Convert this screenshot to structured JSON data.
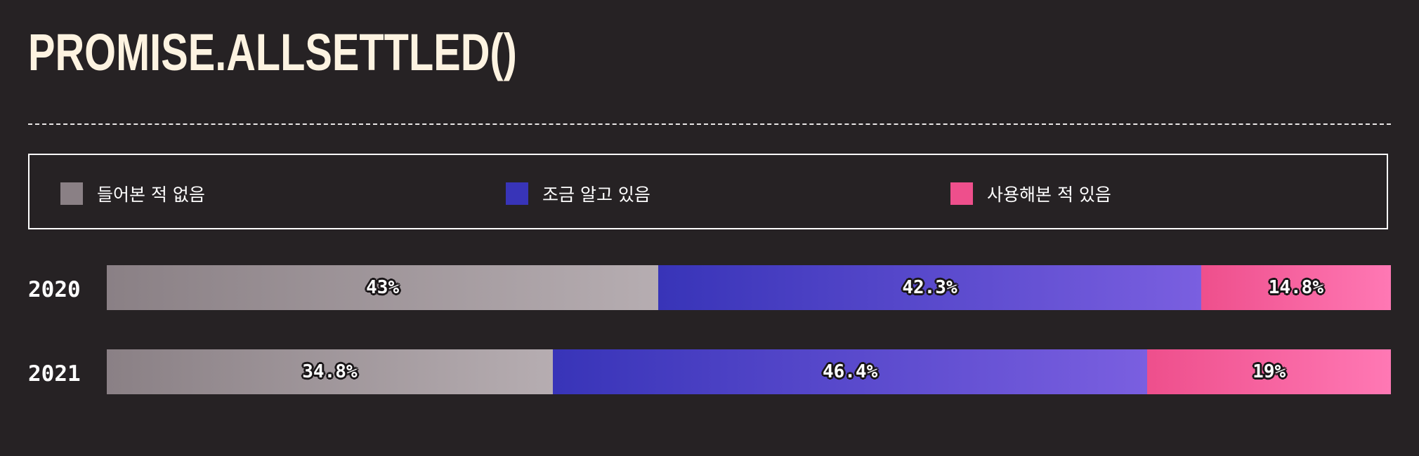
{
  "title": "PROMISE.ALLSETTLED()",
  "colors": {
    "background": "#262224",
    "title": "#fdf3e1",
    "not_heard": "#8a8085",
    "know_little": "#3834b8",
    "used": "#ee4f8c"
  },
  "legend": [
    {
      "label": "들어본 적 없음",
      "color": "#8a8085"
    },
    {
      "label": "조금 알고 있음",
      "color": "#3834b8"
    },
    {
      "label": "사용해본 적 있음",
      "color": "#ee4f8c"
    }
  ],
  "chart_data": {
    "type": "bar",
    "orientation": "horizontal",
    "stacked": true,
    "normalized": true,
    "title": "PROMISE.ALLSETTLED()",
    "categories": [
      "2020",
      "2021"
    ],
    "series": [
      {
        "name": "들어본 적 없음",
        "values": [
          43,
          34.8
        ],
        "labels": [
          "43%",
          "34.8%"
        ]
      },
      {
        "name": "조금 알고 있음",
        "values": [
          42.3,
          46.4
        ],
        "labels": [
          "42.3%",
          "46.4%"
        ]
      },
      {
        "name": "사용해본 적 있음",
        "values": [
          14.8,
          19
        ],
        "labels": [
          "14.8%",
          "19%"
        ]
      }
    ],
    "xlim": [
      0,
      100
    ],
    "legend_position": "top",
    "grid": false
  }
}
